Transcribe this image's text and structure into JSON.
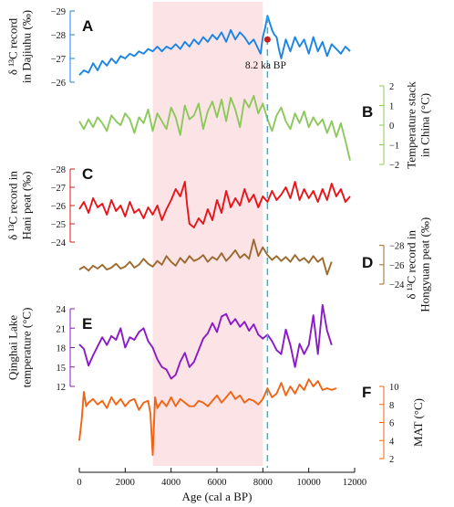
{
  "chart_data": {
    "type": "line",
    "x_axis": {
      "label": "Age (cal a BP)",
      "ticks": [
        0,
        2000,
        4000,
        6000,
        8000,
        10000,
        12000
      ],
      "range": [
        0,
        12000
      ]
    },
    "highlight_band": {
      "x_range": [
        3200,
        8000
      ],
      "color": "#fce3e6"
    },
    "event_line": {
      "x": 8200,
      "label": "8.2 ka BP",
      "color": "#2bb5d8",
      "marker_color": "#c81e1e",
      "marker_y": -27.8
    },
    "panels": [
      {
        "letter": "A",
        "axis_side": "left",
        "color": "#1a85e6",
        "label_lines": [
          "δ ¹³C record",
          "in Dajiuhu (‰)"
        ],
        "ticks": [
          -29,
          -28,
          -27,
          -26
        ],
        "y_range": [
          -26,
          -29
        ],
        "y_reversed": true,
        "x": [
          0,
          200,
          400,
          600,
          800,
          1000,
          1200,
          1400,
          1600,
          1800,
          2000,
          2200,
          2400,
          2600,
          2800,
          3000,
          3200,
          3400,
          3600,
          3800,
          4000,
          4200,
          4400,
          4600,
          4800,
          5000,
          5200,
          5400,
          5600,
          5800,
          6000,
          6200,
          6400,
          6600,
          6800,
          7000,
          7200,
          7400,
          7600,
          7800,
          7900,
          8000,
          8100,
          8200,
          8300,
          8400,
          8500,
          8600,
          8700,
          8800,
          9000,
          9200,
          9400,
          9600,
          9800,
          10000,
          10200,
          10400,
          10600,
          10800,
          11000,
          11200,
          11400,
          11600,
          11800
        ],
        "y": [
          -26.3,
          -26.5,
          -26.4,
          -26.8,
          -26.5,
          -26.9,
          -26.7,
          -27.0,
          -26.8,
          -27.1,
          -27.0,
          -27.2,
          -27.1,
          -27.3,
          -27.2,
          -27.4,
          -27.3,
          -27.5,
          -27.3,
          -27.5,
          -27.4,
          -27.6,
          -27.4,
          -27.7,
          -27.5,
          -27.8,
          -27.6,
          -27.9,
          -27.7,
          -28.0,
          -27.8,
          -28.1,
          -27.7,
          -28.2,
          -27.8,
          -28.1,
          -27.9,
          -27.6,
          -27.8,
          -27.4,
          -27.2,
          -27.9,
          -28.3,
          -28.8,
          -28.5,
          -28.2,
          -28.0,
          -27.9,
          -27.4,
          -27.0,
          -27.8,
          -27.3,
          -27.9,
          -27.5,
          -27.8,
          -27.2,
          -27.9,
          -27.3,
          -27.7,
          -27.1,
          -27.6,
          -27.4,
          -27.2,
          -27.5,
          -27.3
        ]
      },
      {
        "letter": "B",
        "axis_side": "right",
        "color": "#8cc85a",
        "label_lines": [
          "Temperature stack",
          "in China (°C)"
        ],
        "ticks": [
          2,
          1,
          0,
          -1,
          -2
        ],
        "y_range": [
          -2,
          2
        ],
        "y_reversed": false,
        "x": [
          0,
          200,
          400,
          600,
          800,
          1000,
          1200,
          1400,
          1600,
          1800,
          2000,
          2200,
          2400,
          2600,
          2800,
          3000,
          3200,
          3400,
          3600,
          3800,
          4000,
          4200,
          4400,
          4600,
          4800,
          5000,
          5200,
          5400,
          5600,
          5800,
          6000,
          6200,
          6400,
          6600,
          6800,
          7000,
          7200,
          7400,
          7600,
          7800,
          8000,
          8200,
          8400,
          8600,
          8800,
          9000,
          9200,
          9400,
          9600,
          9800,
          10000,
          10200,
          10400,
          10600,
          10800,
          11000,
          11200,
          11400,
          11600,
          11800
        ],
        "y": [
          0.2,
          -0.2,
          0.3,
          -0.1,
          0.4,
          0.1,
          -0.3,
          0.5,
          0.2,
          0.0,
          0.6,
          0.3,
          -0.4,
          0.4,
          0.1,
          0.8,
          -0.3,
          0.6,
          0.2,
          -0.2,
          0.9,
          0.4,
          -0.5,
          1.0,
          0.3,
          0.5,
          1.1,
          -0.2,
          0.7,
          1.2,
          0.4,
          1.3,
          0.2,
          1.4,
          0.8,
          -0.1,
          1.3,
          0.9,
          1.5,
          0.6,
          1.1,
          0.3,
          -0.3,
          0.5,
          0.9,
          0.2,
          -0.2,
          0.6,
          0.1,
          0.7,
          -0.1,
          0.4,
          0.0,
          0.3,
          -0.4,
          0.2,
          -0.6,
          0.1,
          -0.8,
          -1.8
        ]
      },
      {
        "letter": "C",
        "axis_side": "left",
        "color": "#e8141a",
        "label_lines": [
          "δ ¹³C record in",
          "Hani peat (‰)"
        ],
        "ticks": [
          -28,
          -27,
          -26,
          -25,
          -24
        ],
        "y_range": [
          -24,
          -28
        ],
        "y_reversed": true,
        "x": [
          0,
          200,
          400,
          600,
          800,
          1000,
          1200,
          1400,
          1600,
          1800,
          2000,
          2200,
          2400,
          2600,
          2800,
          3000,
          3200,
          3400,
          3600,
          3800,
          4000,
          4200,
          4400,
          4600,
          4700,
          4800,
          5000,
          5200,
          5400,
          5600,
          5800,
          6000,
          6200,
          6400,
          6600,
          6800,
          7000,
          7200,
          7400,
          7600,
          7800,
          8000,
          8200,
          8400,
          8600,
          8800,
          9000,
          9200,
          9400,
          9600,
          9800,
          10000,
          10200,
          10400,
          10600,
          10800,
          11000,
          11200,
          11400,
          11600,
          11800
        ],
        "y": [
          -25.8,
          -26.2,
          -25.6,
          -26.4,
          -25.9,
          -26.1,
          -25.5,
          -26.3,
          -25.7,
          -26.0,
          -25.4,
          -26.2,
          -25.6,
          -25.8,
          -25.3,
          -25.9,
          -25.5,
          -26.0,
          -25.2,
          -25.8,
          -26.3,
          -26.9,
          -26.5,
          -27.3,
          -26.0,
          -25.0,
          -24.8,
          -25.3,
          -25.0,
          -25.8,
          -25.2,
          -26.3,
          -25.6,
          -26.8,
          -25.9,
          -26.4,
          -26.0,
          -26.9,
          -26.2,
          -26.6,
          -25.9,
          -26.5,
          -26.2,
          -26.8,
          -26.3,
          -26.6,
          -27.0,
          -26.4,
          -27.3,
          -26.3,
          -26.9,
          -26.4,
          -26.8,
          -26.2,
          -26.9,
          -26.3,
          -27.2,
          -26.5,
          -26.9,
          -26.2,
          -26.5
        ]
      },
      {
        "letter": "D",
        "axis_side": "right",
        "color": "#9c6a2e",
        "label_lines": [
          "δ ¹³C record in",
          "Hongyuan peat (‰)"
        ],
        "ticks": [
          -28,
          -26,
          -24
        ],
        "y_range": [
          -24,
          -29
        ],
        "y_reversed": true,
        "x": [
          0,
          200,
          400,
          600,
          800,
          1000,
          1200,
          1400,
          1600,
          1800,
          2000,
          2200,
          2400,
          2600,
          2800,
          3000,
          3200,
          3400,
          3600,
          3800,
          4000,
          4200,
          4400,
          4600,
          4800,
          5000,
          5200,
          5400,
          5600,
          5800,
          6000,
          6200,
          6400,
          6600,
          6800,
          7000,
          7200,
          7400,
          7600,
          7800,
          8000,
          8200,
          8400,
          8600,
          8800,
          9000,
          9200,
          9400,
          9600,
          9800,
          10000,
          10200,
          10400,
          10600,
          10800,
          11000
        ],
        "y": [
          -25.5,
          -25.8,
          -25.4,
          -25.9,
          -25.6,
          -26.0,
          -25.5,
          -25.7,
          -26.1,
          -25.6,
          -25.8,
          -26.3,
          -25.7,
          -26.0,
          -26.6,
          -26.1,
          -25.8,
          -26.4,
          -26.0,
          -26.9,
          -26.3,
          -25.9,
          -26.7,
          -26.2,
          -26.9,
          -26.4,
          -26.6,
          -27.0,
          -26.3,
          -26.8,
          -26.5,
          -27.2,
          -26.4,
          -26.9,
          -27.5,
          -26.7,
          -27.1,
          -26.6,
          -28.6,
          -26.9,
          -27.8,
          -27.0,
          -26.5,
          -26.9,
          -26.4,
          -26.8,
          -26.3,
          -27.0,
          -26.4,
          -26.7,
          -26.2,
          -26.9,
          -26.3,
          -26.7,
          -25.0,
          -26.3
        ]
      },
      {
        "letter": "E",
        "axis_side": "left",
        "color": "#8a19c8",
        "label_lines": [
          "Qinghai Lake",
          "temperature (°C)"
        ],
        "ticks": [
          24,
          21,
          18,
          15,
          12
        ],
        "y_range": [
          12,
          24
        ],
        "y_reversed": false,
        "x": [
          0,
          200,
          400,
          600,
          800,
          1000,
          1200,
          1400,
          1600,
          1800,
          2000,
          2200,
          2400,
          2600,
          2800,
          3000,
          3200,
          3400,
          3600,
          3800,
          4000,
          4200,
          4400,
          4600,
          4800,
          5000,
          5200,
          5400,
          5600,
          5800,
          6000,
          6200,
          6400,
          6600,
          6800,
          7000,
          7200,
          7400,
          7600,
          7800,
          8000,
          8200,
          8400,
          8600,
          8800,
          9000,
          9200,
          9400,
          9600,
          9800,
          10000,
          10200,
          10400,
          10600,
          10800,
          11000
        ],
        "y": [
          18.5,
          17.8,
          15.2,
          16.8,
          18.2,
          19.6,
          18.4,
          19.8,
          19.2,
          21.0,
          18.0,
          19.6,
          19.2,
          20.4,
          21.0,
          19.0,
          18.0,
          16.2,
          15.0,
          14.6,
          13.2,
          13.8,
          15.8,
          17.2,
          15.0,
          15.8,
          17.6,
          19.4,
          20.2,
          21.8,
          20.4,
          22.8,
          23.2,
          21.6,
          22.4,
          21.2,
          22.0,
          20.6,
          21.6,
          20.0,
          19.4,
          20.0,
          19.0,
          17.6,
          17.0,
          20.8,
          18.4,
          15.0,
          18.6,
          17.0,
          18.4,
          23.0,
          17.0,
          24.6,
          20.6,
          18.4
        ]
      },
      {
        "letter": "F",
        "axis_side": "right",
        "color": "#f06414",
        "label_lines": [
          "MAT (°C)"
        ],
        "ticks": [
          10,
          8,
          6,
          4,
          2
        ],
        "y_range": [
          2,
          10
        ],
        "y_reversed": false,
        "x": [
          0,
          100,
          200,
          300,
          400,
          600,
          800,
          1000,
          1200,
          1400,
          1600,
          1800,
          2000,
          2200,
          2400,
          2600,
          2800,
          3000,
          3100,
          3200,
          3300,
          3400,
          3600,
          3800,
          4000,
          4200,
          4400,
          4600,
          4800,
          5000,
          5200,
          5400,
          5600,
          5800,
          6000,
          6200,
          6400,
          6600,
          6800,
          7000,
          7200,
          7400,
          7600,
          7800,
          8000,
          8200,
          8400,
          8600,
          8800,
          9000,
          9200,
          9400,
          9600,
          9800,
          10000,
          10200,
          10400,
          10600,
          10800,
          11000,
          11200
        ],
        "y": [
          4.0,
          6.2,
          9.4,
          7.8,
          8.2,
          8.6,
          8.0,
          8.4,
          7.6,
          8.8,
          8.0,
          8.6,
          7.8,
          8.4,
          8.6,
          7.4,
          8.2,
          8.4,
          7.0,
          2.4,
          8.8,
          7.6,
          8.4,
          7.8,
          8.8,
          7.8,
          8.6,
          8.2,
          7.8,
          7.8,
          8.4,
          8.2,
          7.8,
          8.4,
          9.0,
          8.2,
          8.8,
          9.4,
          8.6,
          9.0,
          8.2,
          8.6,
          8.4,
          8.0,
          8.6,
          9.8,
          8.8,
          9.2,
          10.4,
          9.0,
          10.0,
          9.2,
          10.2,
          9.6,
          10.8,
          10.0,
          10.6,
          9.6,
          9.8,
          9.6,
          9.8
        ]
      }
    ]
  }
}
